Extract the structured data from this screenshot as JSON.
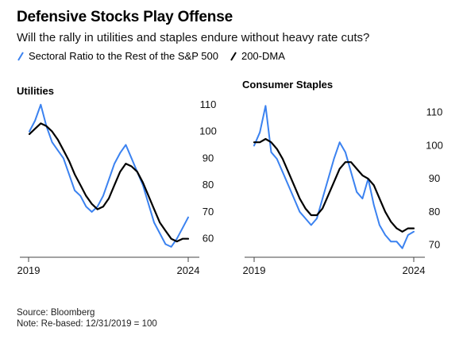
{
  "header": {
    "title": "Defensive Stocks Play Offense",
    "subtitle": "Will the rally in utilities and staples endure without heavy rate cuts?",
    "legend": [
      {
        "label": "Sectoral Ratio to the Rest of the S&P 500",
        "color": "#3b82f0"
      },
      {
        "label": "200-DMA",
        "color": "#000000"
      }
    ]
  },
  "footer": {
    "source": "Source: Bloomberg",
    "note": "Note: Re-based: 12/31/2019 = 100"
  },
  "chart_data": [
    {
      "type": "line",
      "title": "Utilities",
      "x_ticks": [
        "2019",
        "2024"
      ],
      "y_ticks": [
        60,
        70,
        80,
        90,
        100,
        110
      ],
      "ylim": [
        54,
        112
      ],
      "x": [
        "2019-12",
        "2020-01",
        "2020-02",
        "2020-03",
        "2020-04",
        "2020-06",
        "2020-08",
        "2020-10",
        "2020-12",
        "2021-02",
        "2021-04",
        "2021-06",
        "2021-08",
        "2021-10",
        "2021-12",
        "2022-02",
        "2022-04",
        "2022-06",
        "2022-08",
        "2022-10",
        "2022-12",
        "2023-02",
        "2023-04",
        "2023-06",
        "2023-08",
        "2023-10",
        "2023-12",
        "2024-02",
        "2024-03"
      ],
      "series": [
        {
          "name": "Sectoral Ratio to the Rest of the S&P 500",
          "color": "#3b82f0",
          "values": [
            100,
            104,
            110,
            102,
            96,
            93,
            90,
            84,
            78,
            76,
            72,
            70,
            72,
            76,
            82,
            88,
            92,
            95,
            90,
            85,
            80,
            73,
            66,
            62,
            58,
            57,
            60,
            64,
            68
          ]
        },
        {
          "name": "200-DMA",
          "color": "#000000",
          "values": [
            99,
            101,
            103,
            102,
            100,
            97,
            93,
            89,
            84,
            80,
            76,
            73,
            71,
            72,
            75,
            80,
            85,
            88,
            87,
            85,
            81,
            76,
            71,
            66,
            63,
            60,
            59,
            60,
            60
          ]
        }
      ]
    },
    {
      "type": "line",
      "title": "Consumer Staples",
      "x_ticks": [
        "2019",
        "2024"
      ],
      "y_ticks": [
        70,
        80,
        90,
        100,
        110
      ],
      "ylim": [
        67,
        114
      ],
      "x": [
        "2019-12",
        "2020-01",
        "2020-02",
        "2020-03",
        "2020-04",
        "2020-06",
        "2020-08",
        "2020-10",
        "2020-12",
        "2021-02",
        "2021-04",
        "2021-06",
        "2021-08",
        "2021-10",
        "2021-12",
        "2022-02",
        "2022-04",
        "2022-06",
        "2022-08",
        "2022-10",
        "2022-12",
        "2023-02",
        "2023-04",
        "2023-06",
        "2023-08",
        "2023-10",
        "2023-12",
        "2024-02",
        "2024-03"
      ],
      "series": [
        {
          "name": "Sectoral Ratio to the Rest of the S&P 500",
          "color": "#3b82f0",
          "values": [
            100,
            104,
            112,
            98,
            96,
            92,
            88,
            84,
            80,
            78,
            76,
            78,
            84,
            90,
            96,
            101,
            98,
            92,
            86,
            84,
            90,
            82,
            76,
            73,
            71,
            71,
            69,
            73,
            74
          ]
        },
        {
          "name": "200-DMA",
          "color": "#000000",
          "values": [
            101,
            101,
            102,
            101,
            99,
            96,
            92,
            88,
            84,
            81,
            79,
            79,
            81,
            85,
            89,
            93,
            95,
            95,
            93,
            91,
            90,
            88,
            84,
            80,
            77,
            75,
            74,
            75,
            75
          ]
        }
      ]
    }
  ]
}
